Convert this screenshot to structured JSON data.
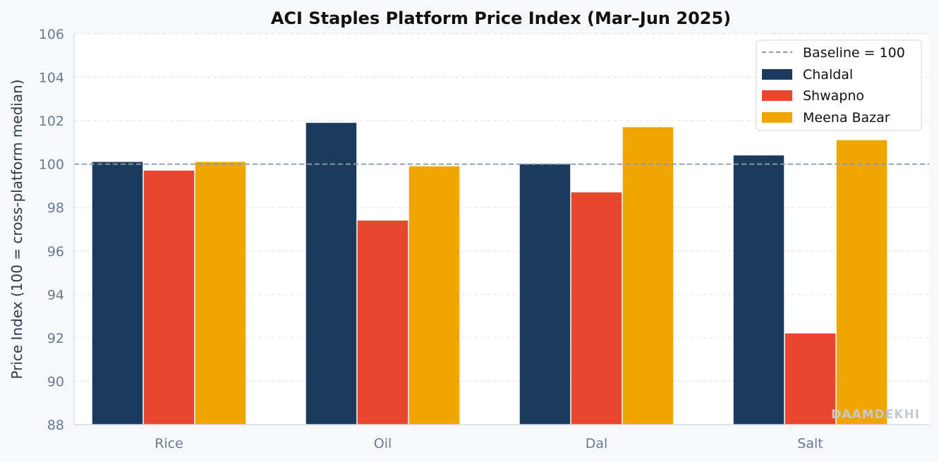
{
  "chart_data": {
    "type": "bar",
    "title": "ACI Staples Platform Price Index  (Mar–Jun 2025)",
    "xlabel": "",
    "ylabel": "Price Index (100 = cross-platform median)",
    "categories": [
      "Rice",
      "Oil",
      "Dal",
      "Salt"
    ],
    "series": [
      {
        "name": "Chaldal",
        "color": "#1b3a5c",
        "values": [
          100.1,
          101.9,
          100.0,
          100.4
        ]
      },
      {
        "name": "Shwapno",
        "color": "#e8472d",
        "values": [
          99.7,
          97.4,
          98.7,
          92.2
        ]
      },
      {
        "name": "Meena Bazar",
        "color": "#f0a500",
        "values": [
          100.1,
          99.9,
          101.7,
          101.1
        ]
      }
    ],
    "baseline": {
      "label": "Baseline = 100",
      "value": 100,
      "color": "#8a9bb0"
    },
    "ylim": [
      88,
      106
    ],
    "yticks": [
      88,
      90,
      92,
      94,
      96,
      98,
      100,
      102,
      104,
      106
    ],
    "grid": true,
    "legend_position": "top-right",
    "watermark": "DAAMDEKHI"
  }
}
